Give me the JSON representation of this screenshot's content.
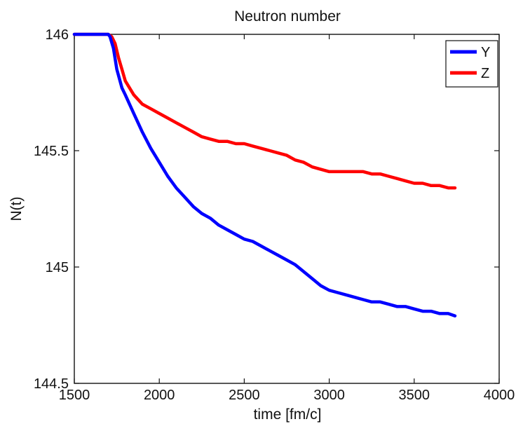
{
  "chart_data": {
    "type": "line",
    "title": "Neutron number",
    "xlabel": "time [fm/c]",
    "ylabel": "N(t)",
    "xlim": [
      1500,
      4000
    ],
    "ylim": [
      144.5,
      146
    ],
    "xticks": [
      1500,
      2000,
      2500,
      3000,
      3500,
      4000
    ],
    "yticks": [
      144.5,
      145,
      145.5,
      146
    ],
    "xtick_labels": [
      "1500",
      "2000",
      "2500",
      "3000",
      "3500",
      "4000"
    ],
    "ytick_labels": [
      "144.5",
      "145",
      "145.5",
      "146"
    ],
    "grid": false,
    "legend_position": "top-right",
    "series": [
      {
        "name": "Y",
        "color": "#0000ff",
        "x": [
          1500,
          1700,
          1710,
          1730,
          1750,
          1780,
          1800,
          1850,
          1900,
          1950,
          2000,
          2050,
          2100,
          2150,
          2200,
          2250,
          2300,
          2350,
          2400,
          2450,
          2500,
          2550,
          2600,
          2650,
          2700,
          2750,
          2800,
          2850,
          2900,
          2950,
          3000,
          3050,
          3100,
          3150,
          3200,
          3250,
          3300,
          3350,
          3400,
          3450,
          3500,
          3550,
          3600,
          3650,
          3700,
          3740
        ],
        "y": [
          146,
          146,
          145.99,
          145.94,
          145.85,
          145.77,
          145.74,
          145.66,
          145.58,
          145.51,
          145.45,
          145.39,
          145.34,
          145.3,
          145.26,
          145.23,
          145.21,
          145.18,
          145.16,
          145.14,
          145.12,
          145.11,
          145.09,
          145.07,
          145.05,
          145.03,
          145.01,
          144.98,
          144.95,
          144.92,
          144.9,
          144.89,
          144.88,
          144.87,
          144.86,
          144.85,
          144.85,
          144.84,
          144.83,
          144.83,
          144.82,
          144.81,
          144.81,
          144.8,
          144.8,
          144.79
        ]
      },
      {
        "name": "Z",
        "color": "#ff0000",
        "x": [
          1500,
          1700,
          1720,
          1740,
          1760,
          1780,
          1800,
          1850,
          1900,
          1950,
          2000,
          2050,
          2100,
          2150,
          2200,
          2250,
          2300,
          2350,
          2400,
          2450,
          2500,
          2550,
          2600,
          2650,
          2700,
          2750,
          2800,
          2850,
          2900,
          2950,
          3000,
          3050,
          3100,
          3150,
          3200,
          3250,
          3300,
          3350,
          3400,
          3450,
          3500,
          3550,
          3600,
          3650,
          3700,
          3740
        ],
        "y": [
          146,
          146,
          145.99,
          145.96,
          145.9,
          145.85,
          145.8,
          145.74,
          145.7,
          145.68,
          145.66,
          145.64,
          145.62,
          145.6,
          145.58,
          145.56,
          145.55,
          145.54,
          145.54,
          145.53,
          145.53,
          145.52,
          145.51,
          145.5,
          145.49,
          145.48,
          145.46,
          145.45,
          145.43,
          145.42,
          145.41,
          145.41,
          145.41,
          145.41,
          145.41,
          145.4,
          145.4,
          145.39,
          145.38,
          145.37,
          145.36,
          145.36,
          145.35,
          145.35,
          145.34,
          145.34
        ]
      }
    ]
  }
}
